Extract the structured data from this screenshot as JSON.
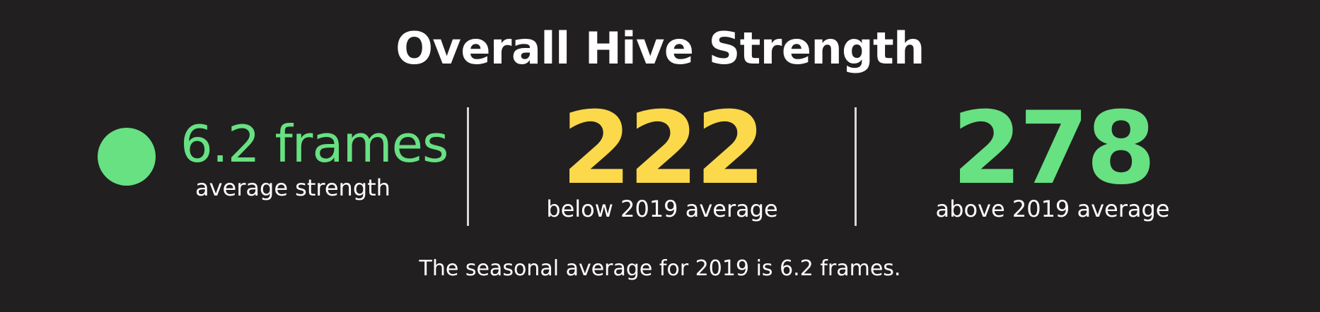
{
  "title": "Overall Hive Strength",
  "average": {
    "value": "6.2 frames",
    "label": "average strength",
    "status_color": "#67e182"
  },
  "stats": [
    {
      "number": "222",
      "label": "below 2019 average",
      "color": "#fcd94a"
    },
    {
      "number": "278",
      "label": "above 2019 average",
      "color": "#67e182"
    }
  ],
  "footnote": "The seasonal average for 2019 is 6.2 frames.",
  "colors": {
    "background": "#221f20",
    "text": "#ffffff",
    "divider": "#d8d8d8"
  }
}
